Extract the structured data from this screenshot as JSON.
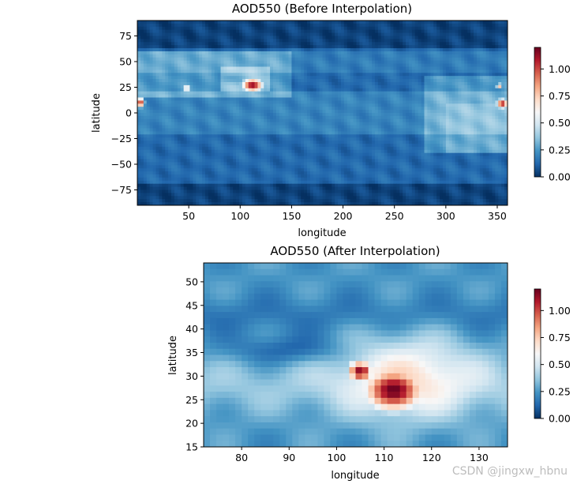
{
  "colors": {
    "colormap": "RdBu_r",
    "colormap_stops": [
      "#053061",
      "#2166ac",
      "#4393c3",
      "#92c5de",
      "#d1e5f0",
      "#f7f7f7",
      "#fddbc7",
      "#f4a582",
      "#d6604d",
      "#b2182b",
      "#67001f"
    ]
  },
  "chart_data": [
    {
      "type": "heatmap",
      "title": "AOD550 (Before Interpolation)",
      "xlabel": "longitude",
      "ylabel": "latitude",
      "xlim": [
        0,
        360
      ],
      "ylim": [
        -90,
        90
      ],
      "xticks": [
        "50",
        "100",
        "150",
        "200",
        "250",
        "300",
        "350"
      ],
      "xtick_values": [
        50,
        100,
        150,
        200,
        250,
        300,
        350
      ],
      "yticks": [
        "75",
        "50",
        "25",
        "0",
        "−25",
        "−50",
        "−75"
      ],
      "ytick_values": [
        75,
        50,
        25,
        0,
        -25,
        -50,
        -75
      ],
      "colorbar": {
        "ticks": [
          "0.00",
          "0.25",
          "0.50",
          "0.75",
          "1.00"
        ],
        "tick_values": [
          0,
          0.25,
          0.5,
          0.75,
          1.0
        ],
        "vmin": 0,
        "vmax": 1.2
      },
      "grid": false,
      "hotspots": [
        {
          "lon": 112,
          "lat": 27,
          "aod": 1.15
        },
        {
          "lon": 3,
          "lat": 10,
          "aod": 1.1
        },
        {
          "lon": 355,
          "lat": 9,
          "aod": 1.1
        },
        {
          "lon": 48,
          "lat": 24,
          "aod": 0.8
        },
        {
          "lon": 352,
          "lat": 26,
          "aod": 0.8
        }
      ]
    },
    {
      "type": "heatmap",
      "title": "AOD550 (After Interpolation)",
      "xlabel": "longitude",
      "ylabel": "latitude",
      "xlim": [
        72,
        136
      ],
      "ylim": [
        15,
        54
      ],
      "xticks": [
        "80",
        "90",
        "100",
        "110",
        "120",
        "130"
      ],
      "xtick_values": [
        80,
        90,
        100,
        110,
        120,
        130
      ],
      "yticks": [
        "50",
        "45",
        "40",
        "35",
        "30",
        "25",
        "20",
        "15"
      ],
      "ytick_values": [
        50,
        45,
        40,
        35,
        30,
        25,
        20,
        15
      ],
      "colorbar": {
        "ticks": [
          "0.00",
          "0.25",
          "0.50",
          "0.75",
          "1.00"
        ],
        "tick_values": [
          0,
          0.25,
          0.5,
          0.75,
          1.0
        ],
        "vmin": 0,
        "vmax": 1.2
      },
      "grid": false,
      "hotspots": [
        {
          "lon": 112,
          "lat": 27,
          "aod": 1.2
        },
        {
          "lon": 105,
          "lat": 31,
          "aod": 1.15
        }
      ]
    }
  ],
  "watermark": "CSDN @jingxw_hbnu"
}
